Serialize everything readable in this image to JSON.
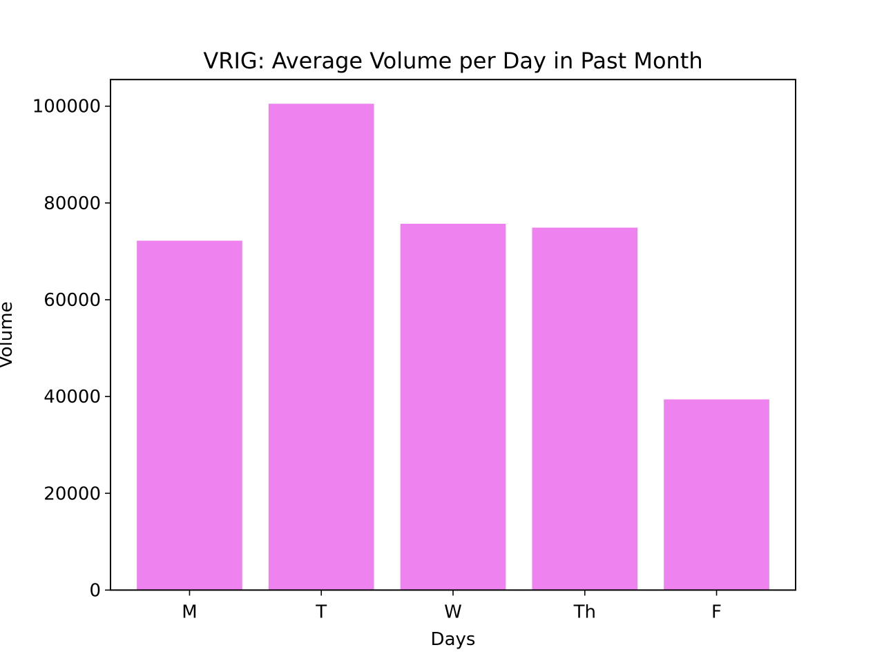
{
  "chart_data": {
    "type": "bar",
    "title": "VRIG: Average Volume per Day in Past Month",
    "xlabel": "Days",
    "ylabel": "Volume",
    "categories": [
      "M",
      "T",
      "W",
      "Th",
      "F"
    ],
    "values": [
      72200,
      100500,
      75700,
      74900,
      39400
    ],
    "ylim": [
      0,
      105500
    ],
    "yticks": [
      0,
      20000,
      40000,
      60000,
      80000,
      100000
    ],
    "bar_color": "#ee82ee",
    "grid": false,
    "legend": "none"
  }
}
